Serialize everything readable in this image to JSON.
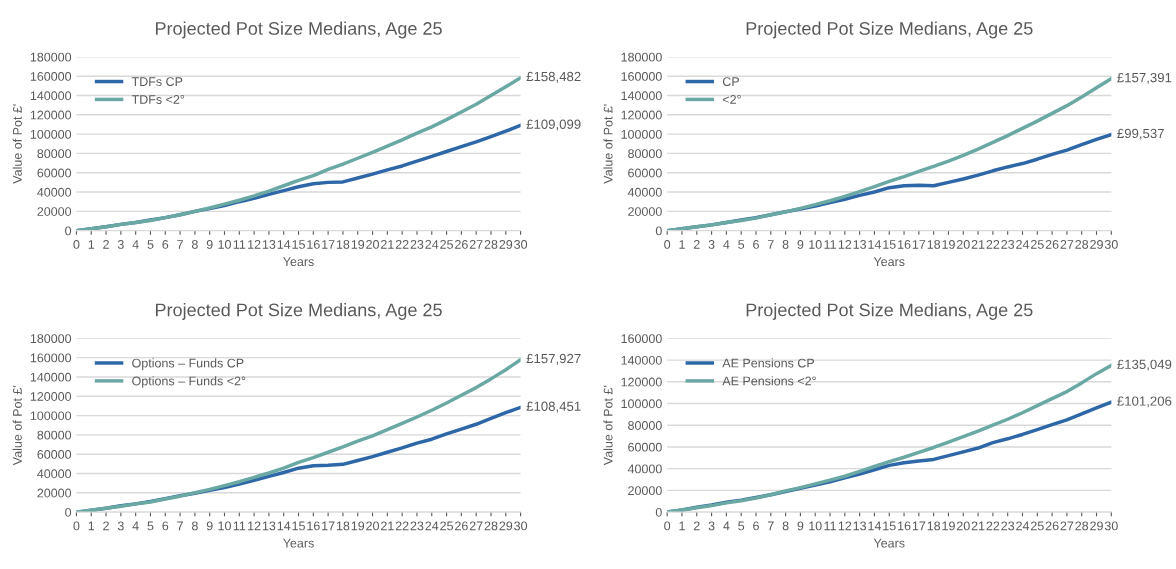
{
  "chart_data": [
    {
      "type": "line",
      "title": "Projected Pot Size Medians, Age 25",
      "xlabel": "Years",
      "ylabel": "Value of Pot £'",
      "categories": [
        "0",
        "1",
        "2",
        "3",
        "4",
        "5",
        "6",
        "7",
        "8",
        "9",
        "10",
        "11",
        "12",
        "13",
        "14",
        "15",
        "16",
        "17",
        "18",
        "19",
        "20",
        "21",
        "22",
        "23",
        "24",
        "25",
        "26",
        "27",
        "28",
        "29",
        "30"
      ],
      "ylim": [
        0,
        180000
      ],
      "yticks": [
        0,
        20000,
        40000,
        60000,
        80000,
        100000,
        120000,
        140000,
        160000,
        180000
      ],
      "grid": "y",
      "legend": "top left",
      "marker": "none",
      "line_style": "solid",
      "series": [
        {
          "name": "TDFs CP",
          "color": "#2e67a8",
          "values": [
            0,
            2000,
            4000,
            6500,
            8500,
            11000,
            13500,
            16500,
            20000,
            23000,
            26000,
            30000,
            33500,
            37500,
            41500,
            45500,
            48500,
            50000,
            50500,
            54500,
            58500,
            63000,
            67000,
            72000,
            77000,
            82000,
            87000,
            92000,
            97500,
            103000,
            109099
          ]
        },
        {
          "name": "TDFs <2°",
          "color": "#6aa8a4",
          "values": [
            0,
            2000,
            4000,
            6500,
            8500,
            10500,
            13500,
            16500,
            20000,
            23500,
            27500,
            31500,
            36000,
            41000,
            46500,
            52000,
            57000,
            63500,
            69000,
            75000,
            81000,
            87500,
            94000,
            101000,
            107500,
            115000,
            123000,
            131000,
            140000,
            149000,
            158482
          ]
        }
      ],
      "annotations": [
        {
          "text": "£158,482",
          "x": "30",
          "y": 158482
        },
        {
          "text": "£109,099",
          "x": "30",
          "y": 109099
        }
      ]
    },
    {
      "type": "line",
      "title": "Projected Pot Size Medians, Age 25",
      "xlabel": "Years",
      "ylabel": "Value of Pot £'",
      "categories": [
        "0",
        "1",
        "2",
        "3",
        "4",
        "5",
        "6",
        "7",
        "8",
        "9",
        "10",
        "11",
        "12",
        "13",
        "14",
        "15",
        "16",
        "17",
        "18",
        "19",
        "20",
        "21",
        "22",
        "23",
        "24",
        "25",
        "26",
        "27",
        "28",
        "29",
        "30"
      ],
      "ylim": [
        0,
        180000
      ],
      "yticks": [
        0,
        20000,
        40000,
        60000,
        80000,
        100000,
        120000,
        140000,
        160000,
        180000
      ],
      "grid": "y",
      "legend": "top left",
      "marker": "none",
      "line_style": "solid",
      "series": [
        {
          "name": "CP",
          "color": "#2e67a8",
          "values": [
            0,
            2000,
            4000,
            6000,
            8500,
            11000,
            13500,
            16500,
            19500,
            22500,
            25500,
            29000,
            32500,
            36500,
            40000,
            44500,
            46500,
            47000,
            46500,
            50000,
            53500,
            57500,
            62000,
            66000,
            69500,
            74000,
            79000,
            83500,
            89000,
            94500,
            99537
          ]
        },
        {
          "name": "<2°",
          "color": "#6aa8a4",
          "values": [
            0,
            2000,
            4000,
            6000,
            8500,
            10500,
            13000,
            16500,
            19500,
            23000,
            27000,
            31000,
            35500,
            40500,
            45500,
            51000,
            56000,
            61500,
            66500,
            72000,
            78000,
            84500,
            91500,
            98500,
            106000,
            113500,
            121500,
            129500,
            138500,
            148000,
            157391
          ]
        }
      ],
      "annotations": [
        {
          "text": "£157,391",
          "x": "30",
          "y": 157391
        },
        {
          "text": "£99,537",
          "x": "30",
          "y": 99537
        }
      ]
    },
    {
      "type": "line",
      "title": "Projected Pot Size Medians, Age 25",
      "xlabel": "Years",
      "ylabel": "Value of Pot £'",
      "categories": [
        "0",
        "1",
        "2",
        "3",
        "4",
        "5",
        "6",
        "7",
        "8",
        "9",
        "10",
        "11",
        "12",
        "13",
        "14",
        "15",
        "16",
        "17",
        "18",
        "19",
        "20",
        "21",
        "22",
        "23",
        "24",
        "25",
        "26",
        "27",
        "28",
        "29",
        "30"
      ],
      "ylim": [
        0,
        180000
      ],
      "yticks": [
        0,
        20000,
        40000,
        60000,
        80000,
        100000,
        120000,
        140000,
        160000,
        180000
      ],
      "grid": "y",
      "legend": "top left",
      "marker": "none",
      "line_style": "solid",
      "series": [
        {
          "name": "Options – Funds CP",
          "color": "#2e67a8",
          "values": [
            0,
            2000,
            4000,
            6500,
            8500,
            11000,
            14000,
            17000,
            19500,
            22500,
            25500,
            29000,
            33000,
            37000,
            41000,
            45500,
            48000,
            48500,
            49500,
            53500,
            57500,
            62000,
            66500,
            71500,
            75500,
            81000,
            86000,
            91000,
            97000,
            103000,
            108451
          ]
        },
        {
          "name": "Options – Funds <2°",
          "color": "#6aa8a4",
          "values": [
            0,
            2000,
            4000,
            6000,
            8500,
            10500,
            13500,
            16500,
            20000,
            23500,
            27500,
            31500,
            36000,
            40500,
            45500,
            51500,
            56500,
            62000,
            67500,
            73500,
            79000,
            85500,
            92000,
            98500,
            105500,
            113000,
            121000,
            129000,
            138000,
            147500,
            157927
          ]
        }
      ],
      "annotations": [
        {
          "text": "£157,927",
          "x": "30",
          "y": 157927
        },
        {
          "text": "£108,451",
          "x": "30",
          "y": 108451
        }
      ]
    },
    {
      "type": "line",
      "title": "Projected Pot Size Medians, Age 25",
      "xlabel": "Years",
      "ylabel": "Value of Pot £'",
      "categories": [
        "0",
        "1",
        "2",
        "3",
        "4",
        "5",
        "6",
        "7",
        "8",
        "9",
        "10",
        "11",
        "12",
        "13",
        "14",
        "15",
        "16",
        "17",
        "18",
        "19",
        "20",
        "21",
        "22",
        "23",
        "24",
        "25",
        "26",
        "27",
        "28",
        "29",
        "30"
      ],
      "ylim": [
        0,
        160000
      ],
      "yticks": [
        0,
        20000,
        40000,
        60000,
        80000,
        100000,
        120000,
        140000,
        160000
      ],
      "grid": "y",
      "legend": "top left",
      "marker": "none",
      "line_style": "solid",
      "series": [
        {
          "name": "AE Pensions CP",
          "color": "#2e67a8",
          "values": [
            0,
            2000,
            4500,
            6500,
            9000,
            11000,
            13500,
            16000,
            19000,
            22000,
            25000,
            28000,
            31500,
            35000,
            39000,
            43000,
            45500,
            47000,
            48500,
            52000,
            55500,
            59000,
            64000,
            67500,
            71500,
            76000,
            80500,
            85000,
            90500,
            96000,
            101206
          ]
        },
        {
          "name": "AE Pensions <2°",
          "color": "#6aa8a4",
          "values": [
            0,
            2000,
            4000,
            6000,
            8500,
            10500,
            13000,
            16000,
            19500,
            22500,
            26000,
            29500,
            33000,
            37500,
            42000,
            46500,
            50500,
            55000,
            59500,
            64500,
            69500,
            74500,
            80000,
            85500,
            91500,
            98000,
            104500,
            111000,
            119000,
            127500,
            135049
          ]
        }
      ],
      "annotations": [
        {
          "text": "£135,049",
          "x": "30",
          "y": 135049
        },
        {
          "text": "£101,206",
          "x": "30",
          "y": 101206
        }
      ]
    }
  ]
}
